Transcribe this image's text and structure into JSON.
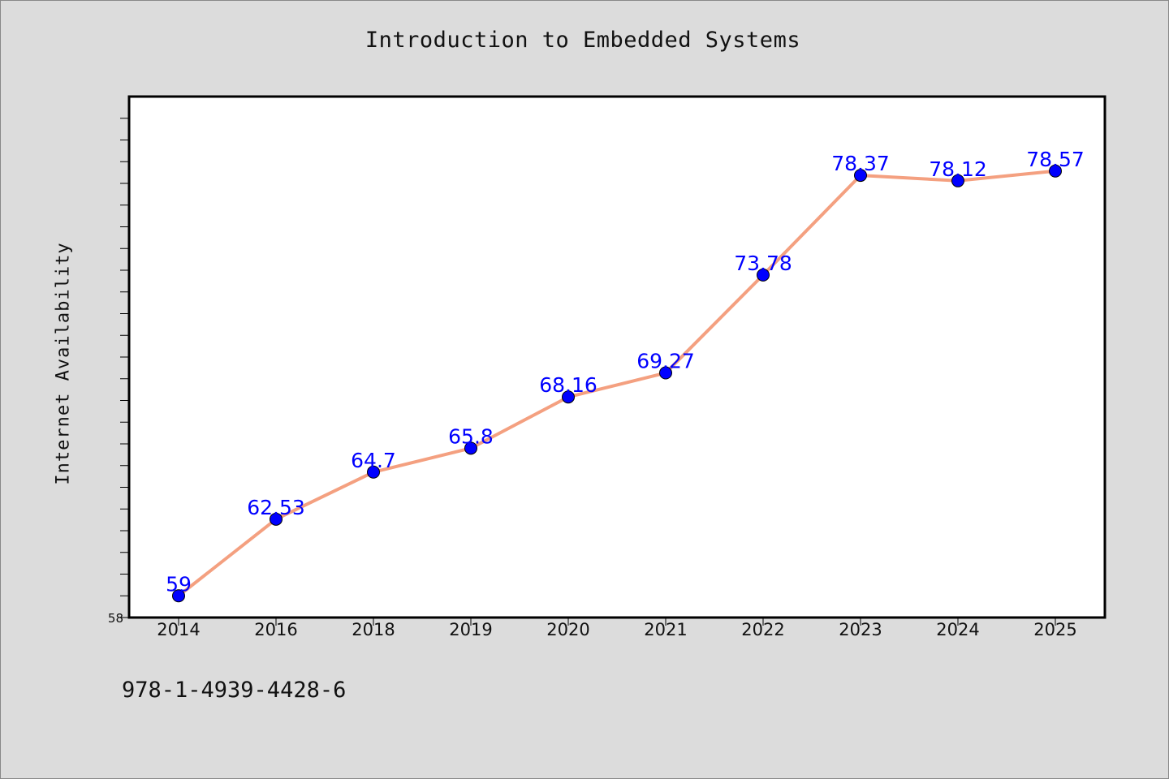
{
  "chart_data": {
    "type": "line",
    "title": "Introduction to Embedded Systems",
    "xlabel": "",
    "ylabel": "Internet Availability",
    "categories": [
      "2014",
      "2016",
      "2018",
      "2019",
      "2020",
      "2021",
      "2022",
      "2023",
      "2024",
      "2025"
    ],
    "series": [
      {
        "values": [
          59,
          62.53,
          64.7,
          65.8,
          68.16,
          69.27,
          73.78,
          78.37,
          78.12,
          78.57
        ]
      }
    ],
    "data_labels": [
      "59",
      "62.53",
      "64.7",
      "65.8",
      "68.16",
      "69.27",
      "73.78",
      "78.37",
      "78.12",
      "78.57"
    ],
    "ylim": [
      58,
      82
    ],
    "y_tick_label_min": "58",
    "grid": false,
    "legend": "none",
    "line_color": "#f4a080",
    "marker_color": "#0000ff",
    "label_color": "#0000ff"
  },
  "footer": {
    "code": "978-1-4939-4428-6"
  }
}
